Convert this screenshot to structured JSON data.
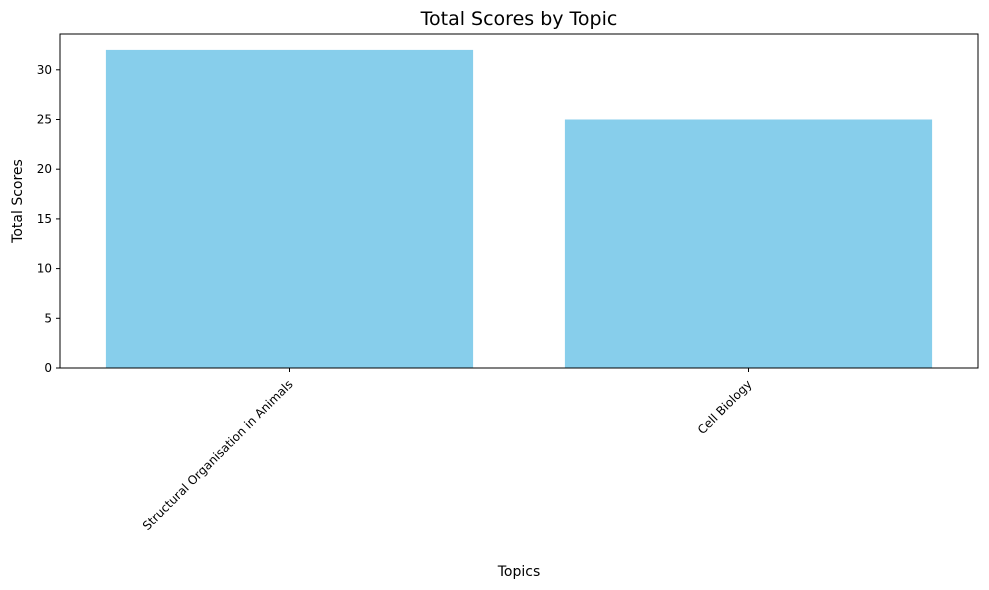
{
  "chart_data": {
    "type": "bar",
    "title": "Total Scores by Topic",
    "xlabel": "Topics",
    "ylabel": "Total Scores",
    "categories": [
      "Structural Organisation in Animals",
      "Cell Biology"
    ],
    "values": [
      32,
      25
    ],
    "ylim": [
      0,
      33.6
    ],
    "yticks": [
      0,
      5,
      10,
      15,
      20,
      25,
      30
    ],
    "bar_color": "#87ceeb",
    "grid": false,
    "legend": "none"
  }
}
